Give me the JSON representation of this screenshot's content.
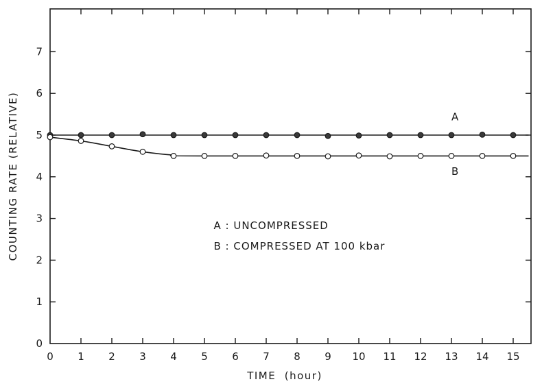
{
  "chart_data": {
    "type": "line",
    "xlabel": "TIME  (hour)",
    "ylabel": "COUNTING RATE (RELATIVE)",
    "xlim": [
      0,
      15.5
    ],
    "ylim": [
      0,
      8
    ],
    "xticks": [
      0,
      1,
      2,
      3,
      4,
      5,
      6,
      7,
      8,
      9,
      10,
      11,
      12,
      13,
      14,
      15
    ],
    "xtick_labels": [
      "0",
      "1",
      "2",
      "3",
      "4",
      "5",
      "6",
      "7",
      "8",
      "9",
      "10",
      "11",
      "12",
      "13",
      "14",
      "15"
    ],
    "yticks": [
      0,
      1,
      2,
      3,
      4,
      5,
      6,
      7
    ],
    "ytick_labels": [
      "0",
      "1",
      "2",
      "3",
      "4",
      "5",
      "6",
      "7"
    ],
    "grid": false,
    "series": [
      {
        "name": "A",
        "marker": "filled-circle",
        "x": [
          0,
          1,
          2,
          3,
          4,
          5,
          6,
          7,
          8,
          9,
          10,
          11,
          12,
          13,
          14,
          15
        ],
        "y": [
          5.0,
          5.0,
          5.0,
          5.02,
          5.0,
          5.0,
          5.0,
          5.0,
          5.0,
          4.98,
          4.99,
          5.0,
          5.0,
          5.0,
          5.01,
          5.0
        ],
        "curve": [
          [
            0,
            5.0
          ],
          [
            15.5,
            5.0
          ]
        ]
      },
      {
        "name": "B",
        "marker": "open-circle",
        "x": [
          0,
          1,
          2,
          3,
          4,
          5,
          6,
          7,
          8,
          9,
          10,
          11,
          12,
          13,
          14,
          15
        ],
        "y": [
          4.95,
          4.86,
          4.73,
          4.6,
          4.5,
          4.5,
          4.5,
          4.51,
          4.5,
          4.49,
          4.51,
          4.49,
          4.5,
          4.5,
          4.5,
          4.5
        ],
        "curve": [
          [
            0,
            4.95
          ],
          [
            1,
            4.86
          ],
          [
            2,
            4.73
          ],
          [
            3,
            4.6
          ],
          [
            4,
            4.52
          ],
          [
            5,
            4.5
          ],
          [
            15.5,
            4.5
          ]
        ]
      }
    ],
    "annotations": [
      {
        "text": "A",
        "x": 13.0,
        "y": 5.35
      },
      {
        "text": "B",
        "x": 13.0,
        "y": 4.05
      },
      {
        "text": "A :   UNCOMPRESSED",
        "x": 5.3,
        "y": 2.75
      },
      {
        "text": "B :   COMPRESSED AT 100 kbar",
        "x": 5.3,
        "y": 2.25
      }
    ]
  }
}
